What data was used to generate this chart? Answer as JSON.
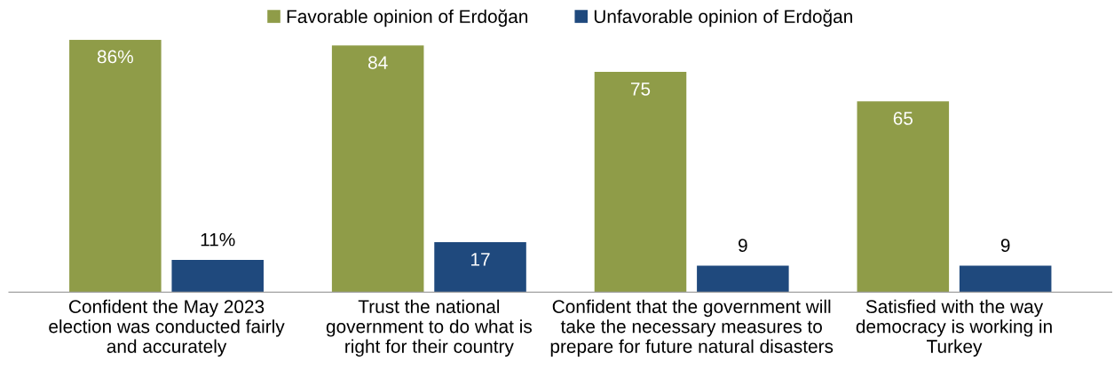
{
  "chart_data": {
    "type": "bar",
    "categories": [
      "Confident the May 2023\nelection was conducted fairly\nand accurately",
      "Trust the national\ngovernment to do what is\nright for their country",
      "Confident that the government will\ntake the necessary measures to\nprepare for future natural disasters",
      "Satisfied with the way\ndemocracy is working in\nTurkey"
    ],
    "series": [
      {
        "name": "Favorable opinion of Erdoğan",
        "color": "#8f9c48",
        "values": [
          86,
          84,
          75,
          65
        ],
        "value_labels": [
          "86%",
          "84",
          "75",
          "65"
        ]
      },
      {
        "name": "Unfavorable opinion of Erdoğan",
        "color": "#1f497d",
        "values": [
          11,
          17,
          9,
          9
        ],
        "value_labels": [
          "11%",
          "17",
          "9",
          "9"
        ]
      }
    ],
    "legend": "top",
    "grid": false
  }
}
